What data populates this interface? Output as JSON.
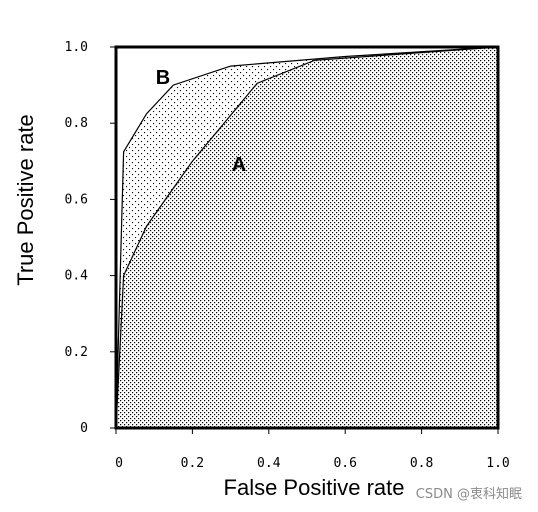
{
  "chart_data": {
    "type": "line",
    "xlabel": "False Positive rate",
    "ylabel": "True Positive rate",
    "xlim": [
      0,
      1
    ],
    "ylim": [
      0,
      1
    ],
    "x_ticks": [
      "0",
      "0.2",
      "0.4",
      "0.6",
      "0.8",
      "1.0"
    ],
    "y_ticks": [
      "0",
      "0.2",
      "0.4",
      "0.6",
      "0.8",
      "1.0"
    ],
    "grid": false,
    "series": [
      {
        "name": "A",
        "x": [
          0,
          0.02,
          0.08,
          0.2,
          0.37,
          0.52,
          1.0
        ],
        "y": [
          0,
          0.4,
          0.53,
          0.7,
          0.905,
          0.965,
          1.0
        ]
      },
      {
        "name": "B",
        "x": [
          0,
          0.02,
          0.08,
          0.15,
          0.3,
          0.6,
          1.0
        ],
        "y": [
          0,
          0.725,
          0.825,
          0.9,
          0.95,
          0.975,
          1.0
        ]
      }
    ]
  },
  "watermark": "CSDN @衷科知眠"
}
